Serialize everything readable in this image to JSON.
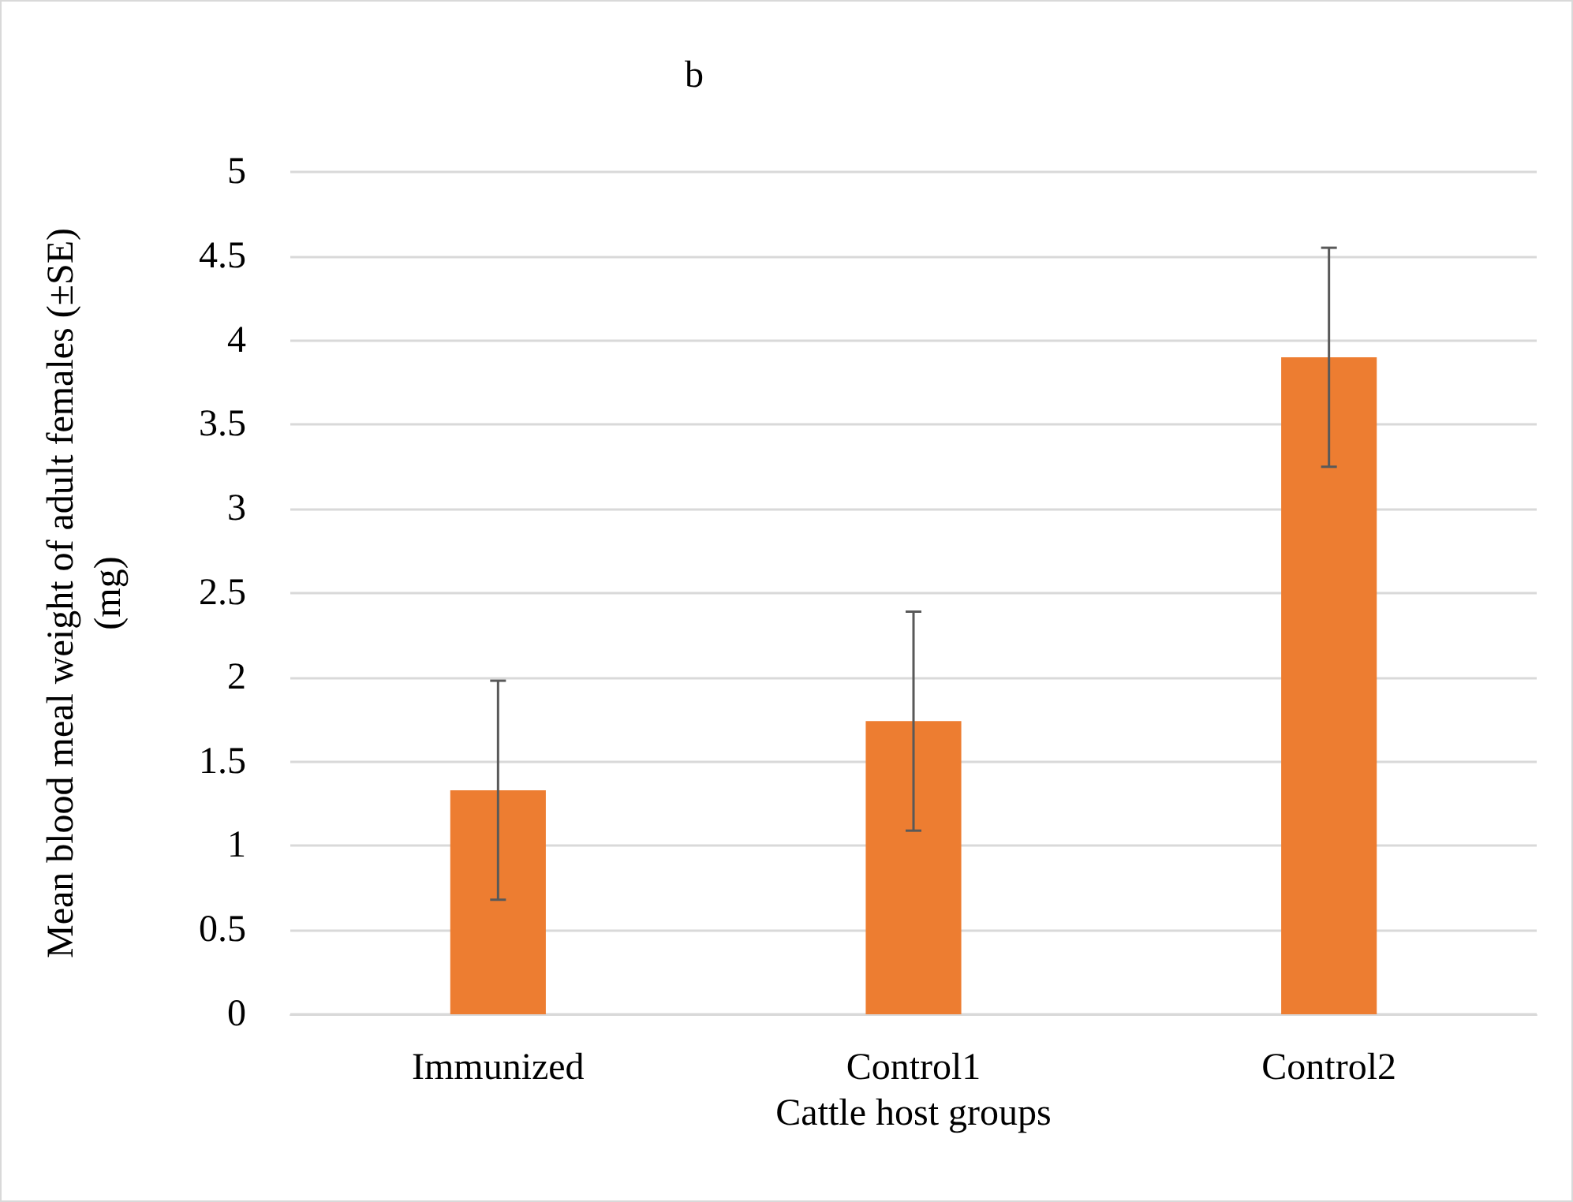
{
  "chart_data": {
    "type": "bar",
    "title": "b",
    "xlabel": "Cattle host groups",
    "ylabel": "Mean blood meal weight of adult females (±SE)\n(mg)",
    "categories": [
      "Immunized",
      "Control1",
      "Control2"
    ],
    "values": [
      1.33,
      1.74,
      3.9
    ],
    "errors": [
      0.65,
      0.65,
      0.65
    ],
    "color": "#ed7d31",
    "ylim": [
      0,
      5
    ],
    "yticks": [
      0,
      0.5,
      1,
      1.5,
      2,
      2.5,
      3,
      3.5,
      4,
      4.5,
      5
    ],
    "grid": "y"
  }
}
